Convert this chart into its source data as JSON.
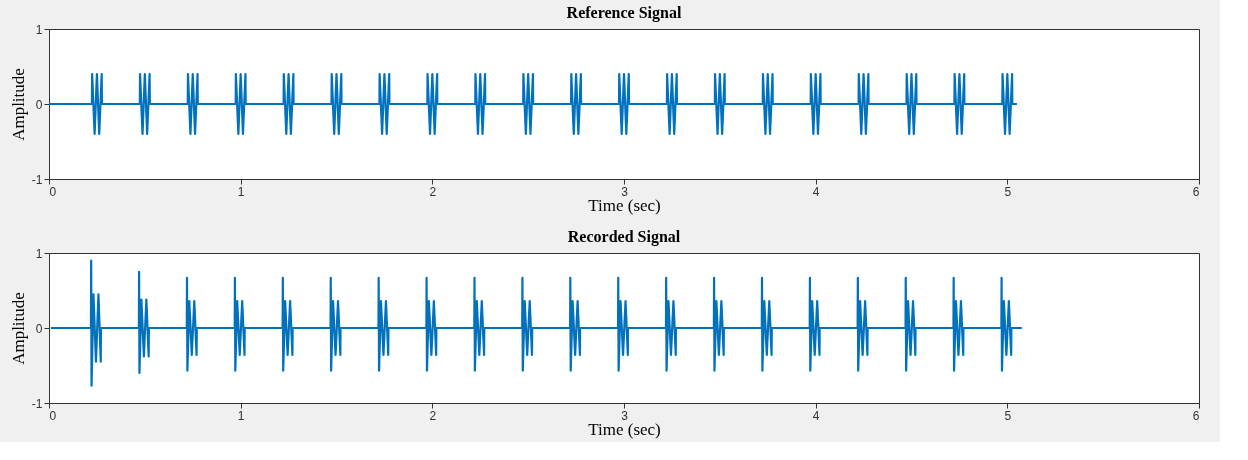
{
  "chart_data": [
    {
      "type": "line",
      "title": "Reference Signal",
      "xlabel": "Time (sec)",
      "ylabel": "Amplitude",
      "xlim": [
        0,
        6
      ],
      "ylim": [
        -1,
        1
      ],
      "xticks": [
        0,
        1,
        2,
        3,
        4,
        5,
        6
      ],
      "yticks": [
        -1,
        0,
        1
      ],
      "grid": false,
      "series": [
        {
          "color": "#0072bd",
          "x": [
            0,
            0.224,
            0.225,
            0.238,
            0.25,
            0.262,
            0.275,
            0.276,
            0.474,
            0.475,
            0.488,
            0.5,
            0.512,
            0.525,
            0.526,
            0.724,
            0.725,
            0.738,
            0.75,
            0.762,
            0.775,
            0.776,
            0.974,
            0.975,
            0.988,
            1,
            1.012,
            1.025,
            1.026,
            1.224,
            1.225,
            1.238,
            1.25,
            1.262,
            1.275,
            1.276,
            1.474,
            1.475,
            1.488,
            1.5,
            1.512,
            1.525,
            1.526,
            1.724,
            1.725,
            1.738,
            1.75,
            1.762,
            1.775,
            1.776,
            1.974,
            1.975,
            1.988,
            2,
            2.012,
            2.025,
            2.026,
            2.224,
            2.225,
            2.238,
            2.25,
            2.262,
            2.275,
            2.276,
            2.474,
            2.475,
            2.488,
            2.5,
            2.512,
            2.525,
            2.526,
            2.724,
            2.725,
            2.738,
            2.75,
            2.762,
            2.775,
            2.776,
            2.974,
            2.975,
            2.988,
            3,
            3.012,
            3.025,
            3.026,
            3.224,
            3.225,
            3.238,
            3.25,
            3.262,
            3.275,
            3.276,
            3.474,
            3.475,
            3.488,
            3.5,
            3.512,
            3.525,
            3.526,
            3.724,
            3.725,
            3.738,
            3.75,
            3.762,
            3.775,
            3.776,
            3.974,
            3.975,
            3.988,
            4,
            4.012,
            4.025,
            4.026,
            4.224,
            4.225,
            4.238,
            4.25,
            4.262,
            4.275,
            4.276,
            4.474,
            4.475,
            4.488,
            4.5,
            4.512,
            4.525,
            4.526,
            4.724,
            4.725,
            4.738,
            4.75,
            4.762,
            4.775,
            4.776,
            4.974,
            4.975,
            4.988,
            5,
            5.012,
            5.025,
            5.026,
            5.05
          ],
          "values": [
            0,
            0,
            0.4,
            -0.4,
            0.4,
            -0.4,
            0.4,
            0,
            0,
            0.4,
            -0.4,
            0.4,
            -0.4,
            0.4,
            0,
            0,
            0.4,
            -0.4,
            0.4,
            -0.4,
            0.4,
            0,
            0,
            0.4,
            -0.4,
            0.4,
            -0.4,
            0.4,
            0,
            0,
            0.4,
            -0.4,
            0.4,
            -0.4,
            0.4,
            0,
            0,
            0.4,
            -0.4,
            0.4,
            -0.4,
            0.4,
            0,
            0,
            0.4,
            -0.4,
            0.4,
            -0.4,
            0.4,
            0,
            0,
            0.4,
            -0.4,
            0.4,
            -0.4,
            0.4,
            0,
            0,
            0.4,
            -0.4,
            0.4,
            -0.4,
            0.4,
            0,
            0,
            0.4,
            -0.4,
            0.4,
            -0.4,
            0.4,
            0,
            0,
            0.4,
            -0.4,
            0.4,
            -0.4,
            0.4,
            0,
            0,
            0.4,
            -0.4,
            0.4,
            -0.4,
            0.4,
            0,
            0,
            0.4,
            -0.4,
            0.4,
            -0.4,
            0.4,
            0,
            0,
            0.4,
            -0.4,
            0.4,
            -0.4,
            0.4,
            0,
            0,
            0.4,
            -0.4,
            0.4,
            -0.4,
            0.4,
            0,
            0,
            0.4,
            -0.4,
            0.4,
            -0.4,
            0.4,
            0,
            0,
            0.4,
            -0.4,
            0.4,
            -0.4,
            0.4,
            0,
            0,
            0.4,
            -0.4,
            0.4,
            -0.4,
            0.4,
            0,
            0,
            0.4,
            -0.4,
            0.4,
            -0.4,
            0.4,
            0,
            0,
            0.4,
            -0.4,
            0.4,
            -0.4,
            0.4,
            0,
            0
          ]
        }
      ]
    },
    {
      "type": "line",
      "title": "Recorded Signal",
      "xlabel": "Time (sec)",
      "ylabel": "Amplitude",
      "xlim": [
        0,
        6
      ],
      "ylim": [
        -1,
        1
      ],
      "xticks": [
        0,
        1,
        2,
        3,
        4,
        5,
        6
      ],
      "yticks": [
        -1,
        0,
        1
      ],
      "grid": false,
      "series": [
        {
          "color": "#0072bd",
          "x": [
            0.01,
            0.219,
            0.22,
            0.222,
            0.232,
            0.245,
            0.258,
            0.27,
            0.271,
            0.469,
            0.47,
            0.472,
            0.482,
            0.495,
            0.508,
            0.52,
            0.521,
            0.719,
            0.72,
            0.722,
            0.732,
            0.745,
            0.758,
            0.77,
            0.771,
            0.969,
            0.97,
            0.972,
            0.982,
            0.995,
            1.008,
            1.02,
            1.021,
            1.219,
            1.22,
            1.222,
            1.232,
            1.245,
            1.258,
            1.27,
            1.271,
            1.469,
            1.47,
            1.472,
            1.482,
            1.495,
            1.508,
            1.52,
            1.521,
            1.719,
            1.72,
            1.722,
            1.732,
            1.745,
            1.758,
            1.77,
            1.771,
            1.969,
            1.97,
            1.972,
            1.982,
            1.995,
            2.008,
            2.02,
            2.021,
            2.219,
            2.22,
            2.222,
            2.232,
            2.245,
            2.258,
            2.27,
            2.271,
            2.469,
            2.47,
            2.472,
            2.482,
            2.495,
            2.508,
            2.52,
            2.521,
            2.719,
            2.72,
            2.722,
            2.732,
            2.745,
            2.758,
            2.77,
            2.771,
            2.969,
            2.97,
            2.972,
            2.982,
            2.995,
            3.008,
            3.02,
            3.021,
            3.219,
            3.22,
            3.222,
            3.232,
            3.245,
            3.258,
            3.27,
            3.271,
            3.469,
            3.47,
            3.472,
            3.482,
            3.495,
            3.508,
            3.52,
            3.521,
            3.719,
            3.72,
            3.722,
            3.732,
            3.745,
            3.758,
            3.77,
            3.771,
            3.969,
            3.97,
            3.972,
            3.982,
            3.995,
            4.008,
            4.02,
            4.021,
            4.219,
            4.22,
            4.222,
            4.232,
            4.245,
            4.258,
            4.27,
            4.271,
            4.469,
            4.47,
            4.472,
            4.482,
            4.495,
            4.508,
            4.52,
            4.521,
            4.719,
            4.72,
            4.722,
            4.732,
            4.745,
            4.758,
            4.77,
            4.771,
            4.969,
            4.97,
            4.972,
            4.982,
            4.995,
            5.008,
            5.02,
            5.021,
            5.076
          ],
          "values": [
            0,
            0,
            0.9,
            -0.77,
            0.45,
            -0.45,
            0.45,
            -0.45,
            0,
            0,
            0.75,
            -0.6,
            0.38,
            -0.38,
            0.38,
            -0.38,
            0,
            0,
            0.67,
            -0.57,
            0.36,
            -0.36,
            0.36,
            -0.36,
            0,
            0,
            0.67,
            -0.57,
            0.36,
            -0.36,
            0.36,
            -0.36,
            0,
            0,
            0.67,
            -0.57,
            0.36,
            -0.36,
            0.36,
            -0.36,
            0,
            0,
            0.67,
            -0.57,
            0.36,
            -0.36,
            0.36,
            -0.36,
            0,
            0,
            0.67,
            -0.57,
            0.36,
            -0.36,
            0.36,
            -0.36,
            0,
            0,
            0.67,
            -0.57,
            0.36,
            -0.36,
            0.36,
            -0.36,
            0,
            0,
            0.67,
            -0.57,
            0.36,
            -0.36,
            0.36,
            -0.36,
            0,
            0,
            0.67,
            -0.57,
            0.36,
            -0.36,
            0.36,
            -0.36,
            0,
            0,
            0.67,
            -0.57,
            0.36,
            -0.36,
            0.36,
            -0.36,
            0,
            0,
            0.67,
            -0.57,
            0.36,
            -0.36,
            0.36,
            -0.36,
            0,
            0,
            0.67,
            -0.57,
            0.36,
            -0.36,
            0.36,
            -0.36,
            0,
            0,
            0.67,
            -0.57,
            0.36,
            -0.36,
            0.36,
            -0.36,
            0,
            0,
            0.67,
            -0.57,
            0.36,
            -0.36,
            0.36,
            -0.36,
            0,
            0,
            0.67,
            -0.57,
            0.36,
            -0.36,
            0.36,
            -0.36,
            0,
            0,
            0.67,
            -0.57,
            0.36,
            -0.36,
            0.36,
            -0.36,
            0,
            0,
            0.67,
            -0.57,
            0.36,
            -0.36,
            0.36,
            -0.36,
            0,
            0,
            0.67,
            -0.57,
            0.36,
            -0.36,
            0.36,
            -0.36,
            0,
            0,
            0.67,
            -0.57,
            0.36,
            -0.36,
            0.36,
            -0.36,
            0,
            0
          ]
        }
      ]
    }
  ]
}
